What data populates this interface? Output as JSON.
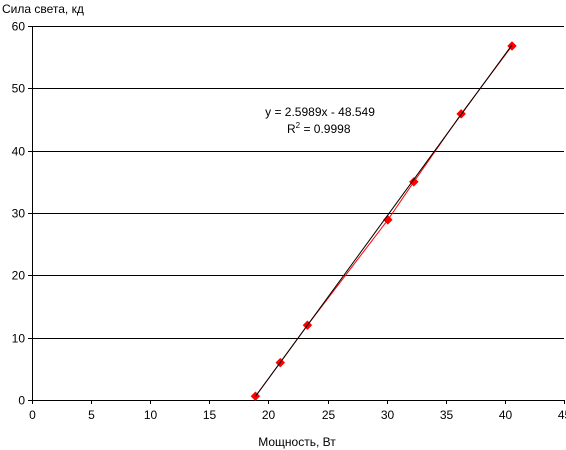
{
  "chart_data": {
    "type": "scatter",
    "xlabel": "Мощность, Вт",
    "ylabel": "Сила света, кд",
    "xlim": [
      0,
      45
    ],
    "ylim": [
      0,
      60
    ],
    "x_ticks": [
      0,
      5,
      10,
      15,
      20,
      25,
      30,
      35,
      40,
      45
    ],
    "y_ticks": [
      0,
      10,
      20,
      30,
      40,
      50,
      60
    ],
    "grid": "horizontal",
    "series": [
      {
        "x": [
          18.9,
          21.0,
          23.3,
          30.1,
          32.3,
          36.3,
          40.6
        ],
        "y": [
          0.6,
          6.0,
          12.0,
          28.9,
          35.0,
          45.9,
          56.8
        ],
        "color": "#ff0000",
        "marker": "diamond"
      }
    ],
    "trendline": {
      "type": "linear",
      "slope": 2.5989,
      "intercept": -48.549,
      "color": "#000000",
      "equation": "y = 2.5989x - 48.549",
      "r2_prefix": "R",
      "r2_sup": "2",
      "r2_value": " = 0.9998"
    }
  }
}
